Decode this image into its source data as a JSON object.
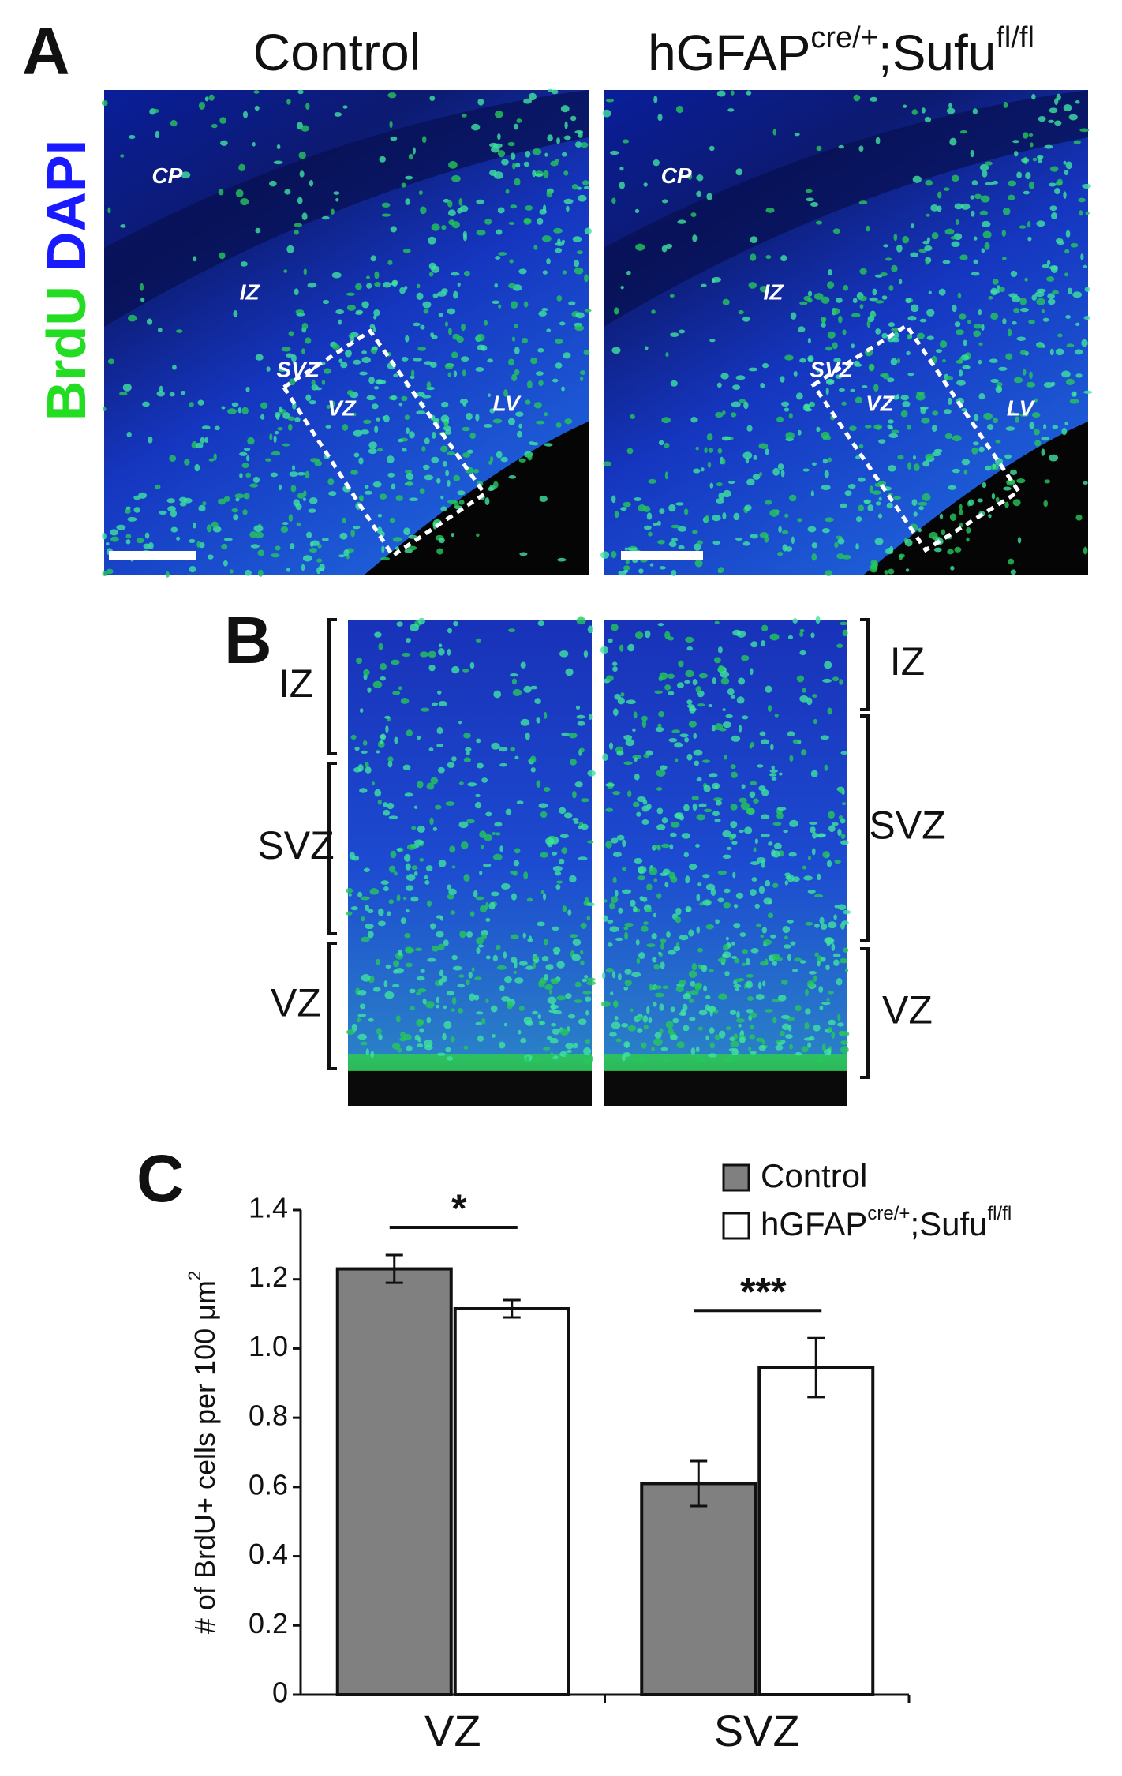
{
  "figure": {
    "panel_a": {
      "label": "A",
      "stain": [
        "BrdU",
        "DAPI"
      ],
      "columns": [
        [
          "Control"
        ],
        [
          "hGFAP",
          "cre/+",
          ";Sufu",
          "fl/fl"
        ]
      ],
      "regions": [
        [
          "CP",
          "IZ",
          "SVZ",
          "VZ",
          "LV"
        ],
        [
          "CP",
          "IZ",
          "SVZ",
          "VZ",
          "LV"
        ]
      ]
    },
    "panel_b": {
      "label": "B",
      "left_zones": [
        "IZ",
        "SVZ",
        "VZ"
      ],
      "right_zones": [
        "IZ",
        "SVZ",
        "VZ"
      ]
    },
    "panel_c": {
      "label": "C"
    }
  },
  "chart_data": {
    "type": "bar",
    "y_label": [
      "# of BrdU+ cells per 100 μm",
      "2"
    ],
    "categories": [
      "VZ",
      "SVZ"
    ],
    "series": [
      {
        "name": [
          "Control"
        ],
        "color": "#808080",
        "values": [
          1.23,
          0.61
        ],
        "errors": [
          0.04,
          0.065
        ]
      },
      {
        "name": [
          "hGFAP",
          "cre/+",
          ";Sufu",
          "fl/fl"
        ],
        "color": "#ffffff",
        "values": [
          1.115,
          0.945
        ],
        "errors": [
          0.025,
          0.085
        ]
      }
    ],
    "significance": [
      "*",
      "***"
    ],
    "ylim": [
      0,
      1.4
    ],
    "yticks": [
      0,
      0.2,
      0.4,
      0.6,
      0.8,
      {
        "value": 1.0,
        "label": "1.0"
      },
      1.2,
      1.4
    ],
    "legend": "top-right"
  }
}
